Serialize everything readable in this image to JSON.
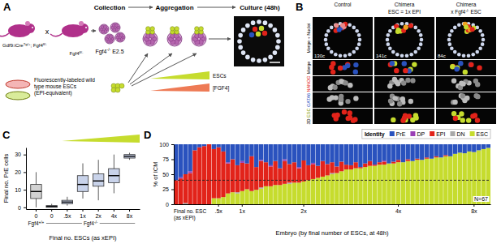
{
  "chart_data": [
    {
      "type": "box",
      "panel_label": "C",
      "categories": [
        "0",
        "0",
        ".5x",
        "1x",
        "2x",
        "4x",
        "8x"
      ],
      "x_groups": [
        {
          "label": [
            [
              "Fgf4",
              "+/+"
            ]
          ],
          "count": 1
        },
        {
          "label": [
            [
              "Fgf4",
              "-/-"
            ]
          ],
          "count": 6
        }
      ],
      "ylabel": "Final no. PrE cells",
      "xlabel": "Final no. ESCs (as xEPI)",
      "ylim": [
        -1,
        34
      ],
      "yticks": [
        0,
        10,
        20,
        30
      ],
      "grid": false,
      "lower_whisker": [
        0,
        0,
        1,
        5,
        4,
        8,
        27
      ],
      "q1": [
        5,
        0,
        2,
        9,
        12,
        14,
        28
      ],
      "median": [
        9,
        0.5,
        3,
        13,
        15,
        18,
        29
      ],
      "q3": [
        13,
        1,
        4,
        18,
        19,
        22,
        30
      ],
      "upper_whisker": [
        20,
        2,
        6,
        25,
        27,
        30,
        31
      ],
      "colors": [
        "#d2d2d2",
        "#c9d3ea",
        "#c9d3ea",
        "#c9d3ea",
        "#c9d3ea",
        "#c9d3ea",
        "#c9d3ea"
      ]
    },
    {
      "type": "bar",
      "panel_label": "D",
      "stacked": true,
      "grid": false,
      "legend": "top",
      "legend_title": "Identity",
      "ylabel": "% of ICM",
      "xlabel": "Embryo (by final number of ESCs, at 48h)",
      "ylim": [
        0,
        100
      ],
      "yticks": [
        0,
        25,
        50,
        75,
        100
      ],
      "reference_lines": [
        40
      ],
      "annotations": [
        {
          "text": "Final no. ESC (as xEPI)"
        },
        {
          "text": "N=67"
        }
      ],
      "categories": [
        null,
        null,
        null,
        null,
        null,
        null,
        null,
        null,
        null,
        ".5x",
        null,
        null,
        null,
        null,
        "1x",
        null,
        null,
        null,
        null,
        null,
        null,
        null,
        null,
        null,
        null,
        null,
        null,
        "2x",
        null,
        null,
        null,
        null,
        null,
        null,
        null,
        null,
        null,
        null,
        null,
        null,
        null,
        null,
        null,
        null,
        null,
        null,
        null,
        "4x",
        null,
        null,
        null,
        null,
        null,
        null,
        null,
        null,
        null,
        null,
        null,
        null,
        null,
        null,
        null,
        "8x",
        null,
        null,
        null
      ],
      "series": [
        {
          "name": "PrE",
          "color": "#2a52be",
          "values": [
            60,
            55,
            50,
            45,
            10,
            5,
            3,
            0,
            8,
            5,
            12,
            30,
            25,
            35,
            28,
            32,
            20,
            38,
            26,
            30,
            35,
            28,
            40,
            25,
            33,
            30,
            38,
            27,
            35,
            31,
            36,
            28,
            33,
            30,
            37,
            29,
            34,
            35,
            30,
            38,
            32,
            28,
            34,
            30,
            27,
            32,
            29,
            26,
            30,
            25,
            28,
            24,
            26,
            22,
            24,
            20,
            22,
            18,
            20,
            16,
            14,
            15,
            12,
            13,
            10,
            8,
            6
          ]
        },
        {
          "name": "DP",
          "color": "#9a3fb5",
          "values": [
            0,
            2,
            0,
            3,
            0,
            0,
            0,
            0,
            0,
            0,
            0,
            2,
            0,
            0,
            3,
            0,
            0,
            0,
            2,
            0,
            2,
            0,
            0,
            3,
            0,
            0,
            2,
            0,
            0,
            2,
            0,
            0,
            0,
            0,
            0,
            0,
            0,
            0,
            0,
            0,
            0,
            0,
            0,
            0,
            2,
            0,
            0,
            0,
            0,
            0,
            0,
            0,
            0,
            0,
            0,
            0,
            0,
            0,
            0,
            0,
            0,
            0,
            0,
            0,
            0,
            0,
            0
          ]
        },
        {
          "name": "EPI",
          "color": "#e2231a",
          "values": [
            40,
            43,
            48,
            52,
            90,
            95,
            97,
            100,
            82,
            85,
            76,
            50,
            55,
            45,
            47,
            43,
            58,
            38,
            44,
            40,
            33,
            40,
            28,
            38,
            31,
            34,
            24,
            35,
            25,
            25,
            20,
            26,
            19,
            18,
            11,
            16,
            8,
            7,
            10,
            2,
            6,
            8,
            2,
            4,
            5,
            0,
            3,
            4,
            0,
            3,
            0,
            2,
            0,
            2,
            0,
            2,
            0,
            2,
            0,
            0,
            0,
            0,
            0,
            0,
            0,
            0,
            0
          ]
        },
        {
          "name": "DN",
          "color": "#a8a8a8",
          "values": [
            0,
            0,
            2,
            0,
            0,
            0,
            0,
            0,
            0,
            0,
            0,
            0,
            0,
            2,
            0,
            0,
            0,
            0,
            2,
            0,
            0,
            0,
            0,
            0,
            2,
            0,
            0,
            0,
            0,
            0,
            0,
            0,
            0,
            2,
            0,
            0,
            0,
            0,
            0,
            0,
            0,
            0,
            0,
            0,
            0,
            0,
            0,
            0,
            0,
            0,
            0,
            0,
            0,
            0,
            0,
            0,
            0,
            0,
            0,
            0,
            0,
            0,
            0,
            0,
            0,
            0,
            0
          ]
        },
        {
          "name": "ESC",
          "color": "#c6dc2e",
          "values": [
            0,
            0,
            0,
            0,
            0,
            0,
            0,
            0,
            10,
            10,
            12,
            18,
            20,
            18,
            22,
            25,
            22,
            24,
            26,
            30,
            30,
            32,
            32,
            34,
            34,
            36,
            36,
            38,
            40,
            42,
            44,
            46,
            48,
            50,
            52,
            55,
            58,
            58,
            60,
            60,
            62,
            64,
            64,
            66,
            66,
            68,
            68,
            70,
            70,
            72,
            72,
            74,
            74,
            76,
            76,
            78,
            78,
            80,
            80,
            84,
            86,
            85,
            88,
            87,
            90,
            92,
            94
          ]
        }
      ]
    }
  ],
  "diagram": {
    "panel_a": {
      "panel_label": "A",
      "female": [
        [
          "Gdf9:iCre",
          "Tg/+"
        ],
        [
          "; Fgf4",
          "fl/-"
        ]
      ],
      "cross": "x",
      "male": [
        [
          "Fgf4",
          "fl/-"
        ]
      ],
      "steps": [
        "Collection",
        "Aggregation",
        "Culture (48h)"
      ],
      "embryo_label": [
        [
          "Fgf4",
          "-/-"
        ],
        [
          " E2.5"
        ]
      ],
      "esc_label": "Fluorescently-labeled wild type mouse ESCs (EPI-equivalent)",
      "gradients": [
        "ESCs",
        "[FGF4]"
      ]
    },
    "panel_b": {
      "panel_label": "B",
      "columns": [
        {
          "title": "Control"
        },
        {
          "title": "Chimera",
          "subtitle": [
            [
              "ESC = 1x EPI"
            ]
          ]
        },
        {
          "title": "Chimera",
          "subtitle": [
            [
              "x Fgf4",
              "-/-"
            ],
            [
              " ESC"
            ]
          ]
        }
      ],
      "row_labels": [
        [
          {
            "text": "Merge + Nuclei"
          }
        ],
        [
          {
            "text": "Merge"
          }
        ],
        [
          {
            "text": "NANOG",
            "color": "#e2231a"
          }
        ],
        [
          {
            "text": "GATA6",
            "color": "#2a52be"
          }
        ],
        [
          {
            "text": "3D"
          },
          {
            "text": "ESC",
            "color": "#7f9a00"
          }
        ]
      ],
      "cell_counts": [
        "130c",
        "141c",
        "84c"
      ]
    }
  }
}
